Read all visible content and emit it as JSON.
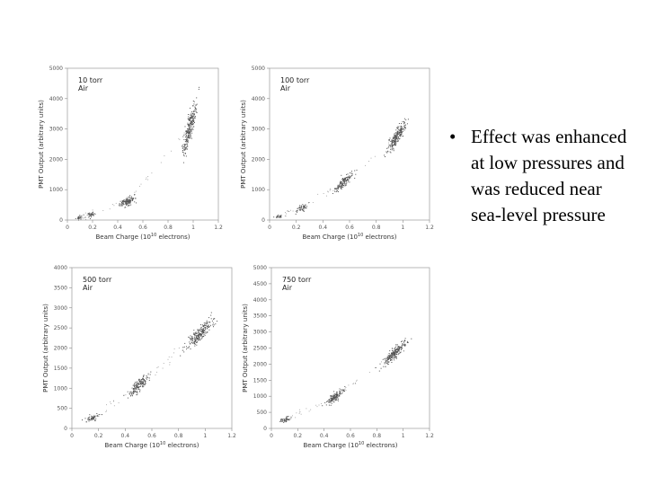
{
  "bullets": [
    {
      "text": "Effect was enhanced at low pressures and was reduced near sea-level pressure"
    }
  ],
  "chart_data": [
    {
      "type": "scatter",
      "annotation": [
        "10 torr",
        "Air"
      ],
      "xlabel": "Beam Charge (10",
      "xlabel_sup": "10",
      "xlabel_tail": " electrons)",
      "ylabel": "PMT Output (arbitrary units)",
      "xlim": [
        0,
        1.2
      ],
      "ylim": [
        0,
        5000
      ],
      "xticks": [
        "0",
        "0.2",
        "0.4",
        "0.6",
        "0.8",
        "1",
        "1.2"
      ],
      "yticks": [
        "0",
        "1000",
        "2000",
        "3000",
        "4000",
        "5000"
      ],
      "point_color": "#555555",
      "clusters": [
        {
          "x": 0.08,
          "y": 80,
          "sx": 0.015,
          "sy": 40,
          "rho": 0.5,
          "n": 25
        },
        {
          "x": 0.18,
          "y": 190,
          "sx": 0.02,
          "sy": 50,
          "rho": 0.5,
          "n": 35
        },
        {
          "x": 0.47,
          "y": 620,
          "sx": 0.03,
          "sy": 90,
          "rho": 0.6,
          "n": 140
        },
        {
          "x": 0.97,
          "y": 3050,
          "sx": 0.03,
          "sy": 430,
          "rho": 0.85,
          "n": 260
        }
      ]
    },
    {
      "type": "scatter",
      "annotation": [
        "100 torr",
        "Air"
      ],
      "xlabel": "Beam Charge (10",
      "xlabel_sup": "10",
      "xlabel_tail": " electrons)",
      "ylabel": "PMT Output (arbitrary units)",
      "xlim": [
        0,
        1.2
      ],
      "ylim": [
        0,
        5000
      ],
      "xticks": [
        "0",
        "0.2",
        "0.4",
        "0.6",
        "0.8",
        "1",
        "1.2"
      ],
      "yticks": [
        "0",
        "1000",
        "2000",
        "3000",
        "4000",
        "5000"
      ],
      "point_color": "#555555",
      "clusters": [
        {
          "x": 0.06,
          "y": 120,
          "sx": 0.015,
          "sy": 40,
          "rho": 0.5,
          "n": 20
        },
        {
          "x": 0.24,
          "y": 400,
          "sx": 0.02,
          "sy": 70,
          "rho": 0.7,
          "n": 50
        },
        {
          "x": 0.55,
          "y": 1250,
          "sx": 0.035,
          "sy": 160,
          "rho": 0.85,
          "n": 150
        },
        {
          "x": 0.95,
          "y": 2750,
          "sx": 0.035,
          "sy": 260,
          "rho": 0.9,
          "n": 240
        }
      ]
    },
    {
      "type": "scatter",
      "annotation": [
        "500 torr",
        "Air"
      ],
      "xlabel": "Beam Charge (10",
      "xlabel_sup": "10",
      "xlabel_tail": " electrons)",
      "ylabel": "PMT Output (arbitrary units)",
      "xlim": [
        0,
        1.2
      ],
      "ylim": [
        0,
        4000
      ],
      "xticks": [
        "0",
        "0.2",
        "0.4",
        "0.6",
        "0.8",
        "1",
        "1.2"
      ],
      "yticks": [
        "0",
        "500",
        "1000",
        "1500",
        "2000",
        "2500",
        "3000",
        "3500",
        "4000"
      ],
      "point_color": "#555555",
      "clusters": [
        {
          "x": 0.15,
          "y": 260,
          "sx": 0.025,
          "sy": 50,
          "rho": 0.6,
          "n": 60
        },
        {
          "x": 0.5,
          "y": 1080,
          "sx": 0.04,
          "sy": 130,
          "rho": 0.8,
          "n": 170
        },
        {
          "x": 0.95,
          "y": 2350,
          "sx": 0.045,
          "sy": 170,
          "rho": 0.85,
          "n": 240
        }
      ]
    },
    {
      "type": "scatter",
      "annotation": [
        "750 torr",
        "Air"
      ],
      "xlabel": "Beam Charge (10",
      "xlabel_sup": "10",
      "xlabel_tail": " electrons)",
      "ylabel": "PMT Output (arbitrary units)",
      "xlim": [
        0,
        1.2
      ],
      "ylim": [
        0,
        5000
      ],
      "xticks": [
        "0",
        "0.2",
        "0.4",
        "0.6",
        "0.8",
        "1",
        "1.2"
      ],
      "yticks": [
        "0",
        "500",
        "1000",
        "1500",
        "2000",
        "2500",
        "3000",
        "3500",
        "4000",
        "4500",
        "5000"
      ],
      "point_color": "#555555",
      "clusters": [
        {
          "x": 0.1,
          "y": 280,
          "sx": 0.02,
          "sy": 50,
          "rho": 0.6,
          "n": 50
        },
        {
          "x": 0.48,
          "y": 1000,
          "sx": 0.03,
          "sy": 110,
          "rho": 0.8,
          "n": 150
        },
        {
          "x": 0.93,
          "y": 2350,
          "sx": 0.04,
          "sy": 170,
          "rho": 0.85,
          "n": 240
        }
      ]
    }
  ]
}
